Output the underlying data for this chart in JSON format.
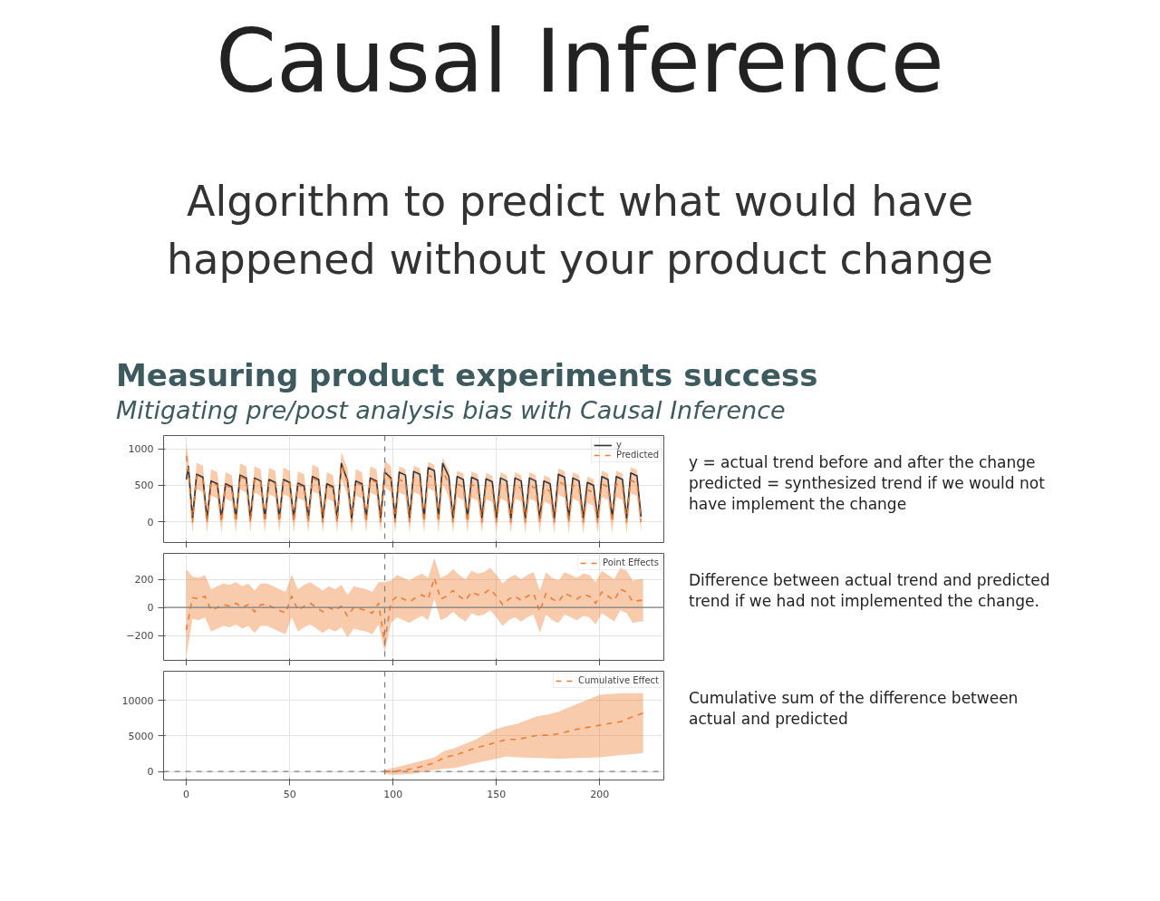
{
  "chart_data": [
    {
      "type": "line",
      "title": "Causal Inference",
      "subtitle": "Algorithm to predict what would have happened without your product change",
      "annotations": [
        "Measuring product experiments success",
        "Mitigating pre/post analysis bias with Causal Inference",
        "y = actual trend before and after the change\npredicted = synthesized trend if we would not have implement the change"
      ],
      "x": [
        0,
        1,
        3,
        5,
        8,
        10,
        12,
        15,
        17,
        19,
        22,
        24,
        26,
        29,
        31,
        33,
        36,
        38,
        40,
        43,
        45,
        47,
        50,
        52,
        54,
        57,
        59,
        61,
        64,
        66,
        68,
        71,
        73,
        75,
        78,
        80,
        82,
        85,
        87,
        89,
        92,
        94,
        96,
        99,
        101,
        103,
        106,
        108,
        110,
        113,
        115,
        117,
        120,
        122,
        124,
        127,
        129,
        131,
        134,
        136,
        138,
        141,
        143,
        145,
        148,
        150,
        152,
        155,
        157,
        159,
        162,
        164,
        166,
        169,
        171,
        173,
        176,
        178,
        180,
        183,
        185,
        187,
        190,
        192,
        194,
        197,
        199,
        201,
        204,
        206,
        208,
        211,
        213,
        215,
        218,
        220
      ],
      "series": [
        {
          "name": "y",
          "color": "#333333",
          "line_style": "solid",
          "values": [
            580,
            760,
            50,
            650,
            610,
            50,
            560,
            520,
            50,
            520,
            480,
            50,
            640,
            600,
            50,
            600,
            560,
            50,
            580,
            540,
            50,
            580,
            540,
            50,
            530,
            490,
            50,
            620,
            580,
            50,
            520,
            480,
            50,
            800,
            560,
            50,
            560,
            520,
            50,
            600,
            560,
            50,
            680,
            600,
            50,
            680,
            640,
            50,
            690,
            650,
            50,
            740,
            700,
            50,
            800,
            620,
            50,
            620,
            580,
            50,
            610,
            570,
            50,
            590,
            550,
            50,
            600,
            560,
            50,
            600,
            560,
            50,
            600,
            560,
            50,
            560,
            520,
            50,
            650,
            610,
            50,
            600,
            560,
            50,
            540,
            500,
            50,
            620,
            580,
            50,
            620,
            580,
            50,
            670,
            630,
            70
          ]
        },
        {
          "name": "Predicted",
          "color": "#ee7c32",
          "line_style": "dashed",
          "values": [
            900,
            700,
            0,
            630,
            590,
            0,
            540,
            500,
            0,
            500,
            460,
            0,
            620,
            580,
            0,
            580,
            540,
            0,
            560,
            520,
            0,
            560,
            520,
            0,
            510,
            470,
            0,
            600,
            560,
            0,
            500,
            460,
            0,
            780,
            540,
            0,
            540,
            500,
            0,
            580,
            540,
            0,
            660,
            580,
            0,
            580,
            540,
            0,
            590,
            550,
            0,
            640,
            600,
            0,
            700,
            520,
            0,
            520,
            480,
            0,
            510,
            470,
            0,
            490,
            450,
            0,
            500,
            460,
            0,
            500,
            460,
            0,
            500,
            460,
            0,
            460,
            420,
            0,
            550,
            510,
            0,
            500,
            460,
            0,
            440,
            400,
            0,
            520,
            480,
            0,
            520,
            480,
            0,
            570,
            530,
            0
          ],
          "lower": [
            720,
            520,
            -150,
            450,
            410,
            -150,
            360,
            320,
            -150,
            320,
            280,
            -150,
            440,
            400,
            -150,
            400,
            360,
            -150,
            380,
            340,
            -150,
            380,
            340,
            -150,
            330,
            290,
            -150,
            420,
            380,
            -150,
            320,
            280,
            -150,
            600,
            360,
            -150,
            360,
            320,
            -150,
            400,
            360,
            -150,
            480,
            400,
            -150,
            400,
            360,
            -150,
            410,
            370,
            -150,
            460,
            420,
            -150,
            520,
            340,
            -150,
            340,
            300,
            -150,
            330,
            290,
            -150,
            310,
            270,
            -150,
            320,
            280,
            -150,
            320,
            280,
            -150,
            320,
            280,
            -150,
            280,
            240,
            -150,
            370,
            330,
            -150,
            320,
            280,
            -150,
            260,
            220,
            -150,
            340,
            300,
            -150,
            340,
            300,
            -150,
            390,
            350,
            -150
          ],
          "upper": [
            1080,
            880,
            150,
            810,
            770,
            150,
            720,
            680,
            150,
            680,
            640,
            150,
            800,
            760,
            150,
            760,
            720,
            150,
            740,
            700,
            150,
            740,
            700,
            150,
            690,
            650,
            150,
            780,
            740,
            150,
            680,
            640,
            150,
            960,
            720,
            150,
            720,
            680,
            150,
            760,
            720,
            150,
            840,
            760,
            150,
            760,
            720,
            150,
            770,
            730,
            150,
            820,
            780,
            150,
            880,
            700,
            150,
            700,
            660,
            150,
            690,
            650,
            150,
            670,
            630,
            150,
            680,
            640,
            150,
            680,
            640,
            150,
            680,
            640,
            150,
            640,
            600,
            150,
            730,
            690,
            150,
            680,
            640,
            150,
            620,
            580,
            150,
            700,
            660,
            150,
            700,
            660,
            150,
            750,
            710,
            150
          ]
        }
      ],
      "xlim": [
        -11,
        231
      ],
      "xticks": [
        0,
        50,
        100,
        150,
        200
      ],
      "ylim": [
        -280,
        1180
      ],
      "yticks": [
        0,
        500,
        1000
      ],
      "tick_labels": "y",
      "grid": true,
      "legend": "top right",
      "ref_lines": [
        {
          "axis": "x",
          "value": 96,
          "color": "#808080",
          "line_style": "dashed"
        }
      ]
    },
    {
      "type": "line",
      "annotations": [
        "Difference between actual trend and predicted trend if we had not implemented the change."
      ],
      "x": [
        0,
        3,
        6,
        9,
        12,
        15,
        18,
        21,
        24,
        27,
        30,
        33,
        36,
        39,
        42,
        45,
        48,
        51,
        54,
        57,
        60,
        63,
        66,
        69,
        72,
        75,
        78,
        81,
        84,
        87,
        90,
        93,
        96,
        99,
        102,
        105,
        108,
        111,
        114,
        117,
        120,
        123,
        126,
        129,
        132,
        135,
        138,
        141,
        144,
        147,
        150,
        153,
        156,
        159,
        162,
        165,
        168,
        171,
        174,
        177,
        180,
        183,
        186,
        189,
        192,
        195,
        198,
        201,
        204,
        207,
        210,
        213,
        216,
        219,
        221
      ],
      "series": [
        {
          "name": "Point Effects",
          "color": "#ee7c32",
          "line_style": "dashed",
          "values": [
            -160,
            70,
            60,
            80,
            -20,
            0,
            20,
            10,
            30,
            0,
            20,
            -30,
            20,
            20,
            0,
            -20,
            -40,
            80,
            -20,
            10,
            30,
            0,
            -30,
            0,
            -20,
            10,
            -60,
            0,
            -10,
            -20,
            -40,
            30,
            -250,
            40,
            80,
            60,
            40,
            70,
            90,
            60,
            210,
            60,
            80,
            120,
            80,
            50,
            110,
            90,
            100,
            130,
            80,
            20,
            60,
            80,
            50,
            80,
            100,
            -30,
            100,
            60,
            40,
            100,
            80,
            60,
            90,
            80,
            30,
            110,
            80,
            50,
            130,
            110,
            40,
            50,
            50
          ],
          "lower": [
            -350,
            -80,
            -90,
            -70,
            -170,
            -150,
            -130,
            -140,
            -120,
            -150,
            -130,
            -180,
            -130,
            -130,
            -150,
            -170,
            -190,
            -70,
            -170,
            -140,
            -120,
            -150,
            -180,
            -150,
            -170,
            -140,
            -210,
            -150,
            -160,
            -170,
            -190,
            -120,
            -320,
            -110,
            -70,
            -90,
            -110,
            -80,
            -60,
            -90,
            60,
            -90,
            -70,
            -30,
            -70,
            -100,
            -40,
            -60,
            -50,
            -20,
            -70,
            -130,
            -90,
            -70,
            -100,
            -70,
            -50,
            -180,
            -50,
            -90,
            -110,
            -50,
            -70,
            -90,
            -60,
            -70,
            -120,
            -40,
            -70,
            -100,
            -20,
            -40,
            -110,
            -100,
            -100
          ],
          "upper": [
            270,
            220,
            210,
            230,
            130,
            150,
            170,
            160,
            180,
            150,
            170,
            120,
            170,
            170,
            150,
            130,
            110,
            230,
            130,
            160,
            180,
            150,
            120,
            150,
            130,
            160,
            90,
            150,
            140,
            130,
            110,
            180,
            180,
            190,
            230,
            210,
            190,
            220,
            240,
            210,
            350,
            210,
            230,
            270,
            230,
            200,
            260,
            240,
            250,
            280,
            230,
            170,
            210,
            230,
            200,
            230,
            250,
            120,
            250,
            210,
            190,
            250,
            230,
            210,
            240,
            230,
            180,
            260,
            230,
            200,
            280,
            260,
            190,
            200,
            200
          ]
        }
      ],
      "xlim": [
        -11,
        231
      ],
      "xticks": [
        0,
        50,
        100,
        150,
        200
      ],
      "ylim": [
        -374,
        383
      ],
      "yticks": [
        {
          "value": -200,
          "label": "−200"
        },
        0,
        200
      ],
      "tick_labels": "y",
      "grid": true,
      "legend": "top right",
      "ref_lines": [
        {
          "axis": "x",
          "value": 96,
          "color": "#808080",
          "line_style": "dashed"
        },
        {
          "axis": "y",
          "value": 0,
          "color": "#808080",
          "line_style": "solid"
        }
      ]
    },
    {
      "type": "line",
      "annotations": [
        "Cumulative sum of the difference between actual and predicted"
      ],
      "x": [
        96,
        100,
        110,
        120,
        125,
        130,
        140,
        150,
        155,
        160,
        170,
        175,
        180,
        190,
        200,
        210,
        215,
        221
      ],
      "series": [
        {
          "name": "Cumulative Effect",
          "color": "#ee7c32",
          "line_style": "dashed",
          "values": [
            0,
            0,
            400,
            1200,
            2000,
            2300,
            3300,
            4100,
            4500,
            4500,
            5100,
            5100,
            5300,
            6000,
            6500,
            7000,
            7600,
            8200
          ],
          "lower": [
            -300,
            -500,
            -300,
            200,
            400,
            500,
            1200,
            1800,
            2100,
            2000,
            1900,
            1850,
            1800,
            1900,
            2000,
            2300,
            2400,
            2600
          ],
          "upper": [
            200,
            500,
            1200,
            2000,
            2900,
            3300,
            4500,
            6000,
            6400,
            6700,
            7800,
            8000,
            8400,
            9600,
            10800,
            11000,
            11000,
            11000
          ]
        }
      ],
      "xlim": [
        -11,
        231
      ],
      "xticks": [
        0,
        50,
        100,
        150,
        200
      ],
      "ylim": [
        -1200,
        14100
      ],
      "yticks": [
        0,
        5000,
        10000
      ],
      "grid": true,
      "legend": "top right",
      "ref_lines": [
        {
          "axis": "x",
          "value": 96,
          "color": "#808080",
          "line_style": "dashed"
        },
        {
          "axis": "y",
          "value": 0,
          "color": "#808080",
          "line_style": "dashed"
        }
      ]
    }
  ]
}
